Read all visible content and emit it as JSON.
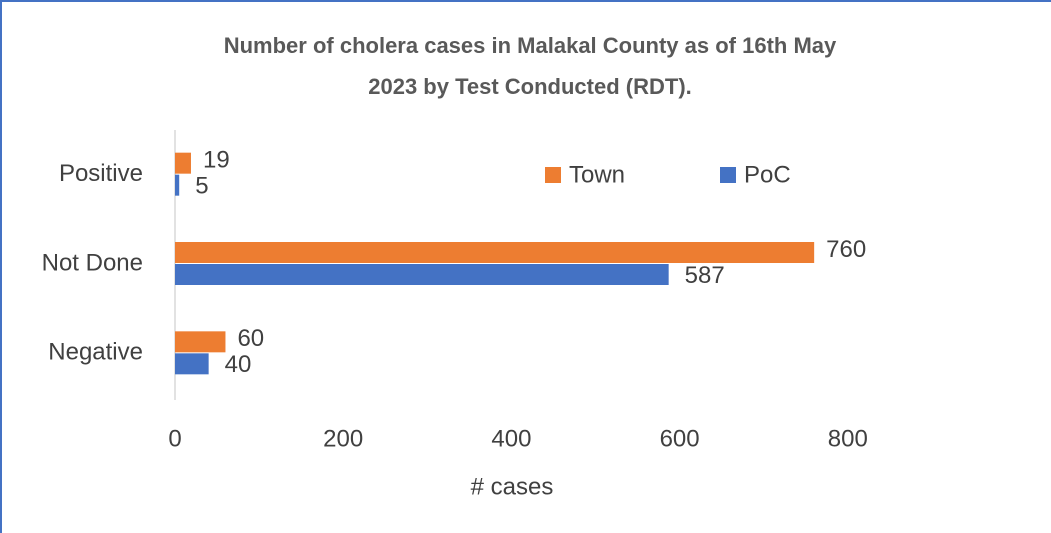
{
  "chart_data": {
    "type": "hbar",
    "title_lines": [
      "Number of cholera cases in Malakal County as of 16th May",
      "2023 by Test Conducted (RDT)."
    ],
    "x_label": "# cases",
    "categories": [
      "Positive",
      "Not Done",
      "Negative"
    ],
    "series": [
      {
        "name": "Town",
        "color": "#ed7d31",
        "values": [
          19,
          760,
          60
        ]
      },
      {
        "name": "PoC",
        "color": "#4472c4",
        "values": [
          5,
          587,
          40
        ]
      }
    ],
    "xlim": [
      0,
      1000
    ],
    "xticks": [
      0,
      200,
      400,
      600,
      800
    ],
    "legend": "top-right"
  }
}
